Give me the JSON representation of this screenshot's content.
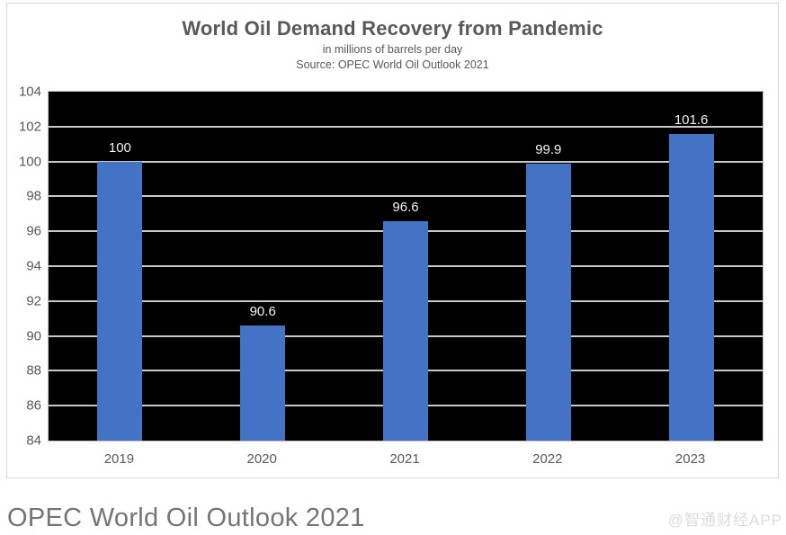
{
  "chart": {
    "title": "World Oil Demand Recovery from Pandemic",
    "subtitle": "in millions of barrels per day",
    "source": "Source: OPEC World Oil Outlook 2021"
  },
  "chart_data": {
    "type": "bar",
    "categories": [
      "2019",
      "2020",
      "2021",
      "2022",
      "2023"
    ],
    "values": [
      100,
      90.6,
      96.6,
      99.9,
      101.6
    ],
    "labels": [
      "100",
      "90.6",
      "96.6",
      "99.9",
      "101.6"
    ],
    "title": "World Oil Demand Recovery from Pandemic",
    "subtitle": "in millions of barrels per day",
    "source": "Source: OPEC World Oil Outlook 2021",
    "xlabel": "",
    "ylabel": "",
    "ylim": [
      84,
      104
    ],
    "ytick_step": 2,
    "grid": true,
    "legend": "none",
    "plot_bg_color": "#000000",
    "bar_color": "#4472c4",
    "gridline_color": "#c8c8c8",
    "data_label_color": "#f2f2f2",
    "axis_text_color": "#595959"
  },
  "footer": {
    "heading": "OPEC World Oil Outlook 2021",
    "watermark": "@智通财经APP"
  }
}
